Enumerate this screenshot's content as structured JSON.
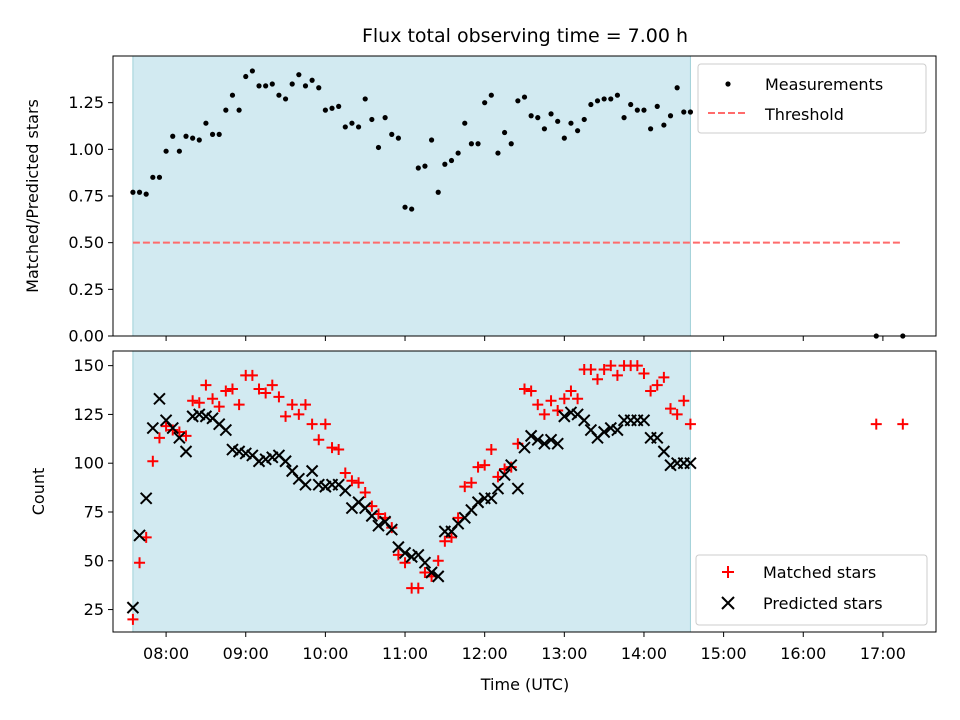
{
  "figure": {
    "title": "Flux total observing time = 7.00 h"
  },
  "colors": {
    "observing_window": "#add8e6",
    "measurements": "#000000",
    "threshold": "#ff6b6b",
    "matched": "#ff0000",
    "predicted": "#000000"
  },
  "chart_data": [
    {
      "type": "scatter",
      "ylabel": "Matched/Predicted stars",
      "xlim": [
        "07:20",
        "17:40"
      ],
      "ylim": [
        0,
        1.5
      ],
      "yticks": [
        0.0,
        0.25,
        0.5,
        0.75,
        1.0,
        1.25
      ],
      "ytick_labels": [
        "0.00",
        "0.25",
        "0.50",
        "0.75",
        "1.00",
        "1.25"
      ],
      "shaded_interval": [
        "07:35",
        "14:35"
      ],
      "legend_position": "top-right",
      "threshold": {
        "name": "Threshold",
        "y": 0.5,
        "x_range": [
          "07:35",
          "17:15"
        ],
        "style": "dashed"
      },
      "series": [
        {
          "name": "Measurements",
          "marker": "dot",
          "x": [
            "07:35",
            "07:40",
            "07:45",
            "07:50",
            "07:55",
            "08:00",
            "08:05",
            "08:10",
            "08:15",
            "08:20",
            "08:25",
            "08:30",
            "08:35",
            "08:40",
            "08:45",
            "08:50",
            "08:55",
            "09:00",
            "09:05",
            "09:10",
            "09:15",
            "09:20",
            "09:25",
            "09:30",
            "09:35",
            "09:40",
            "09:45",
            "09:50",
            "09:55",
            "10:00",
            "10:05",
            "10:10",
            "10:15",
            "10:20",
            "10:25",
            "10:30",
            "10:35",
            "10:40",
            "10:45",
            "10:50",
            "10:55",
            "11:00",
            "11:05",
            "11:10",
            "11:15",
            "11:20",
            "11:25",
            "11:30",
            "11:35",
            "11:40",
            "11:45",
            "11:50",
            "11:55",
            "12:00",
            "12:05",
            "12:10",
            "12:15",
            "12:20",
            "12:25",
            "12:30",
            "12:35",
            "12:40",
            "12:45",
            "12:50",
            "12:55",
            "13:00",
            "13:05",
            "13:10",
            "13:15",
            "13:20",
            "13:25",
            "13:30",
            "13:35",
            "13:40",
            "13:45",
            "13:50",
            "13:55",
            "14:00",
            "14:05",
            "14:10",
            "14:15",
            "14:20",
            "14:25",
            "14:30",
            "14:35",
            "16:55",
            "17:15"
          ],
          "y": [
            0.77,
            0.77,
            0.76,
            0.85,
            0.85,
            0.99,
            1.07,
            0.99,
            1.07,
            1.06,
            1.05,
            1.14,
            1.08,
            1.08,
            1.21,
            1.29,
            1.21,
            1.39,
            1.42,
            1.34,
            1.34,
            1.35,
            1.29,
            1.27,
            1.35,
            1.4,
            1.34,
            1.37,
            1.33,
            1.21,
            1.22,
            1.23,
            1.12,
            1.14,
            1.12,
            1.27,
            1.16,
            1.01,
            1.17,
            1.08,
            1.06,
            0.69,
            0.68,
            0.9,
            0.91,
            1.05,
            0.77,
            0.92,
            0.94,
            0.98,
            1.14,
            1.03,
            1.03,
            1.25,
            1.29,
            0.98,
            1.09,
            1.03,
            1.26,
            1.28,
            1.18,
            1.17,
            1.11,
            1.19,
            1.15,
            1.06,
            1.14,
            1.1,
            1.16,
            1.24,
            1.26,
            1.27,
            1.27,
            1.29,
            1.17,
            1.24,
            1.21,
            1.21,
            1.11,
            1.23,
            1.13,
            1.18,
            1.33,
            1.2,
            1.2,
            0.0,
            0.0
          ]
        }
      ]
    },
    {
      "type": "scatter",
      "xlabel": "Time (UTC)",
      "ylabel": "Count",
      "xlim": [
        "07:20",
        "17:40"
      ],
      "ylim": [
        13.5,
        157.5
      ],
      "xticks": [
        "08:00",
        "09:00",
        "10:00",
        "11:00",
        "12:00",
        "13:00",
        "14:00",
        "15:00",
        "16:00",
        "17:00"
      ],
      "yticks": [
        25,
        50,
        75,
        100,
        125,
        150
      ],
      "ytick_labels": [
        "25",
        "50",
        "75",
        "100",
        "125",
        "150"
      ],
      "shaded_interval": [
        "07:35",
        "14:35"
      ],
      "legend_position": "bottom-right",
      "series": [
        {
          "name": "Matched stars",
          "marker": "plus",
          "x": [
            "07:35",
            "07:40",
            "07:45",
            "07:50",
            "07:55",
            "08:00",
            "08:05",
            "08:10",
            "08:15",
            "08:20",
            "08:25",
            "08:30",
            "08:35",
            "08:40",
            "08:45",
            "08:50",
            "08:55",
            "09:00",
            "09:05",
            "09:10",
            "09:15",
            "09:20",
            "09:25",
            "09:30",
            "09:35",
            "09:40",
            "09:45",
            "09:50",
            "09:55",
            "10:00",
            "10:05",
            "10:10",
            "10:15",
            "10:20",
            "10:25",
            "10:30",
            "10:35",
            "10:40",
            "10:45",
            "10:50",
            "10:55",
            "11:00",
            "11:05",
            "11:10",
            "11:15",
            "11:20",
            "11:25",
            "11:30",
            "11:35",
            "11:40",
            "11:45",
            "11:50",
            "11:55",
            "12:00",
            "12:05",
            "12:10",
            "12:15",
            "12:20",
            "12:25",
            "12:30",
            "12:35",
            "12:40",
            "12:45",
            "12:50",
            "12:55",
            "13:00",
            "13:05",
            "13:10",
            "13:15",
            "13:20",
            "13:25",
            "13:30",
            "13:35",
            "13:40",
            "13:45",
            "13:50",
            "13:55",
            "14:00",
            "14:05",
            "14:10",
            "14:15",
            "14:20",
            "14:25",
            "14:30",
            "14:35",
            "16:55",
            "17:15"
          ],
          "y": [
            20,
            49,
            62,
            101,
            113,
            119,
            117,
            116,
            114,
            132,
            131,
            140,
            133,
            129,
            137,
            138,
            130,
            145,
            145,
            138,
            136,
            140,
            134,
            124,
            130,
            125,
            130,
            120,
            112,
            120,
            108,
            107,
            95,
            91,
            90,
            85,
            78,
            74,
            72,
            67,
            53,
            49,
            36,
            36,
            44,
            42,
            50,
            60,
            62,
            72,
            88,
            90,
            98,
            99,
            107,
            93,
            97,
            98,
            110,
            138,
            137,
            130,
            125,
            132,
            127,
            133,
            137,
            133,
            148,
            148,
            143,
            148,
            150,
            145,
            150,
            150,
            150,
            146,
            137,
            140,
            144,
            128,
            125,
            132,
            120,
            120,
            120
          ]
        },
        {
          "name": "Predicted stars",
          "marker": "x",
          "x": [
            "07:35",
            "07:40",
            "07:45",
            "07:50",
            "07:55",
            "08:00",
            "08:05",
            "08:10",
            "08:15",
            "08:20",
            "08:25",
            "08:30",
            "08:35",
            "08:40",
            "08:45",
            "08:50",
            "08:55",
            "09:00",
            "09:05",
            "09:10",
            "09:15",
            "09:20",
            "09:25",
            "09:30",
            "09:35",
            "09:40",
            "09:45",
            "09:50",
            "09:55",
            "10:00",
            "10:05",
            "10:10",
            "10:15",
            "10:20",
            "10:25",
            "10:30",
            "10:35",
            "10:40",
            "10:45",
            "10:50",
            "10:55",
            "11:00",
            "11:05",
            "11:10",
            "11:15",
            "11:20",
            "11:25",
            "11:30",
            "11:35",
            "11:40",
            "11:45",
            "11:50",
            "11:55",
            "12:00",
            "12:05",
            "12:10",
            "12:15",
            "12:20",
            "12:25",
            "12:30",
            "12:35",
            "12:40",
            "12:45",
            "12:50",
            "12:55",
            "13:00",
            "13:05",
            "13:10",
            "13:15",
            "13:20",
            "13:25",
            "13:30",
            "13:35",
            "13:40",
            "13:45",
            "13:50",
            "13:55",
            "14:00",
            "14:05",
            "14:10",
            "14:15",
            "14:20",
            "14:25",
            "14:30",
            "14:35"
          ],
          "y": [
            26,
            63,
            82,
            118,
            133,
            122,
            118,
            113,
            106,
            124,
            125,
            124,
            123,
            120,
            117,
            107,
            106,
            105,
            104,
            101,
            102,
            103,
            104,
            101,
            96,
            92,
            89,
            96,
            89,
            88,
            89,
            89,
            86,
            77,
            80,
            77,
            73,
            68,
            70,
            66,
            57,
            54,
            52,
            53,
            49,
            44,
            42,
            65,
            65,
            69,
            72,
            76,
            80,
            82,
            82,
            87,
            94,
            99,
            87,
            108,
            114,
            112,
            110,
            112,
            110,
            124,
            126,
            125,
            122,
            117,
            113,
            116,
            118,
            117,
            122,
            122,
            122,
            122,
            113,
            113,
            106,
            99,
            100,
            100,
            100
          ]
        }
      ]
    }
  ]
}
